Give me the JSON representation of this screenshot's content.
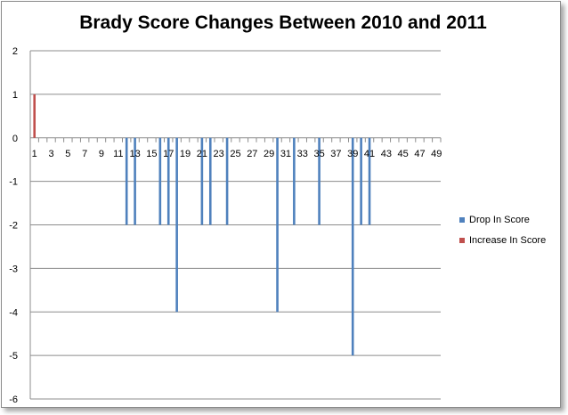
{
  "chart_data": {
    "type": "bar",
    "title": "Brady Score Changes Between 2010 and 2011",
    "xlabel": "",
    "ylabel": "",
    "ylim": [
      -6,
      2
    ],
    "yticks": [
      2,
      1,
      0,
      -1,
      -2,
      -3,
      -4,
      -5,
      -6
    ],
    "x": [
      1,
      2,
      3,
      4,
      5,
      6,
      7,
      8,
      9,
      10,
      11,
      12,
      13,
      14,
      15,
      16,
      17,
      18,
      19,
      20,
      21,
      22,
      23,
      24,
      25,
      26,
      27,
      28,
      29,
      30,
      31,
      32,
      33,
      34,
      35,
      36,
      37,
      38,
      39,
      40,
      41,
      42,
      43,
      44,
      45,
      46,
      47,
      48,
      49
    ],
    "xtick_labels": [
      "1",
      "3",
      "5",
      "7",
      "9",
      "11",
      "13",
      "15",
      "17",
      "19",
      "21",
      "23",
      "25",
      "27",
      "29",
      "31",
      "33",
      "35",
      "37",
      "39",
      "41",
      "43",
      "45",
      "47",
      "49"
    ],
    "grid": "horizontal",
    "legend_position": "right",
    "series": [
      {
        "name": "Drop In Score",
        "color": "#4F81BD",
        "points": [
          {
            "x": 12,
            "y": -2
          },
          {
            "x": 13,
            "y": -2
          },
          {
            "x": 16,
            "y": -2
          },
          {
            "x": 17,
            "y": -2
          },
          {
            "x": 18,
            "y": -4
          },
          {
            "x": 21,
            "y": -2
          },
          {
            "x": 22,
            "y": -2
          },
          {
            "x": 24,
            "y": -2
          },
          {
            "x": 30,
            "y": -4
          },
          {
            "x": 32,
            "y": -2
          },
          {
            "x": 35,
            "y": -2
          },
          {
            "x": 39,
            "y": -5
          },
          {
            "x": 40,
            "y": -2
          },
          {
            "x": 41,
            "y": -2
          }
        ]
      },
      {
        "name": "Increase In Score",
        "color": "#C0504D",
        "points": [
          {
            "x": 1,
            "y": 1
          }
        ]
      }
    ]
  }
}
